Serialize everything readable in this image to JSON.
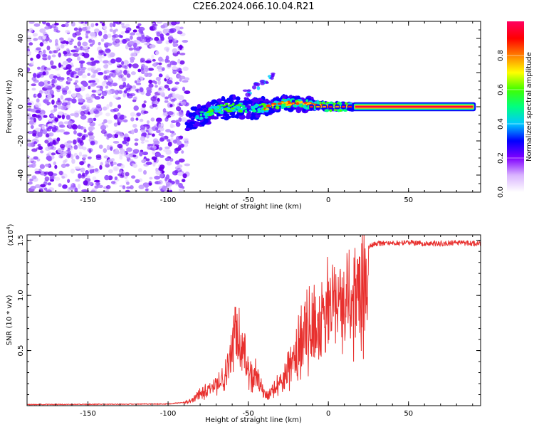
{
  "page_title": "C2E6.2024.066.10.04.R21",
  "chart_data": [
    {
      "type": "heatmap",
      "name": "spectrogram",
      "xlabel": "Height of straight line (km)",
      "ylabel": "Frequency (Hz)",
      "xlim": [
        -188,
        95
      ],
      "ylim": [
        -50,
        50
      ],
      "xticks": [
        -150,
        -100,
        -50,
        0,
        50
      ],
      "xtick_labels": [
        "-150",
        "-100",
        "-50",
        "0",
        "50"
      ],
      "yticks": [
        -40,
        -20,
        0,
        20,
        40
      ],
      "ytick_labels": [
        "-40",
        "-20",
        "0",
        "20",
        "40"
      ],
      "noise_region_x": [
        -188,
        -88
      ],
      "ridge_points": [
        [
          -88,
          -8
        ],
        [
          -80,
          -5
        ],
        [
          -70,
          -2
        ],
        [
          -60,
          0
        ],
        [
          -50,
          -1
        ],
        [
          -40,
          -1
        ],
        [
          -30,
          2
        ],
        [
          -20,
          2
        ],
        [
          -10,
          1
        ],
        [
          0,
          0
        ],
        [
          10,
          0
        ],
        [
          15,
          0
        ],
        [
          30,
          0
        ],
        [
          50,
          0
        ],
        [
          70,
          0
        ],
        [
          92,
          0
        ]
      ],
      "side_branch_points": [
        [
          -50,
          8
        ],
        [
          -45,
          12
        ],
        [
          -40,
          15
        ],
        [
          -35,
          18
        ]
      ],
      "colorbar": {
        "label": "Normalized spectral amplitude",
        "range": [
          0.0,
          1.0
        ],
        "ticks": [
          0.0,
          0.2,
          0.4,
          0.6,
          0.8
        ],
        "tick_labels": [
          "0.0",
          "0.2",
          "0.4",
          "0.6",
          "0.8"
        ],
        "colors": [
          "#ffffff",
          "#d9b3ff",
          "#8000ff",
          "#0000ff",
          "#00c8ff",
          "#00ff80",
          "#40ff00",
          "#ffff00",
          "#ff8000",
          "#ff0000",
          "#ff0060"
        ]
      }
    },
    {
      "type": "line",
      "name": "snr",
      "xlabel": "Height of straight line (km)",
      "ylabel": "SNR (10 * v/v)",
      "multiplier_base": "(x10",
      "multiplier_exp": "4",
      "multiplier_close": ")",
      "xlim": [
        -188,
        95
      ],
      "ylim": [
        0,
        15500
      ],
      "xticks": [
        -150,
        -100,
        -50,
        0,
        50
      ],
      "xtick_labels": [
        "-150",
        "-100",
        "-50",
        "0",
        "50"
      ],
      "yticks": [
        5000,
        10000,
        15000
      ],
      "ytick_labels": [
        "0.5",
        "1.0",
        "1.5"
      ],
      "color": "#e8302e",
      "envelope": [
        [
          -188,
          100
        ],
        [
          -100,
          150
        ],
        [
          -90,
          300
        ],
        [
          -85,
          800
        ],
        [
          -80,
          1500
        ],
        [
          -75,
          2000
        ],
        [
          -70,
          2500
        ],
        [
          -65,
          3500
        ],
        [
          -62,
          5000
        ],
        [
          -60,
          6500
        ],
        [
          -58,
          8500
        ],
        [
          -56,
          9500
        ],
        [
          -54,
          8000
        ],
        [
          -52,
          6000
        ],
        [
          -50,
          4000
        ],
        [
          -48,
          3500
        ],
        [
          -46,
          4000
        ],
        [
          -44,
          3500
        ],
        [
          -42,
          2500
        ],
        [
          -40,
          1500
        ],
        [
          -38,
          1200
        ],
        [
          -36,
          1500
        ],
        [
          -34,
          2000
        ],
        [
          -30,
          2800
        ],
        [
          -25,
          4500
        ],
        [
          -20,
          6500
        ],
        [
          -15,
          8500
        ],
        [
          -10,
          10000
        ],
        [
          -5,
          11000
        ],
        [
          0,
          11800
        ],
        [
          5,
          12500
        ],
        [
          10,
          13000
        ],
        [
          15,
          13200
        ],
        [
          20,
          13800
        ],
        [
          25,
          14500
        ],
        [
          30,
          14700
        ],
        [
          40,
          14800
        ],
        [
          50,
          14800
        ],
        [
          60,
          14700
        ],
        [
          70,
          14700
        ],
        [
          80,
          14800
        ],
        [
          92,
          14700
        ]
      ]
    }
  ]
}
